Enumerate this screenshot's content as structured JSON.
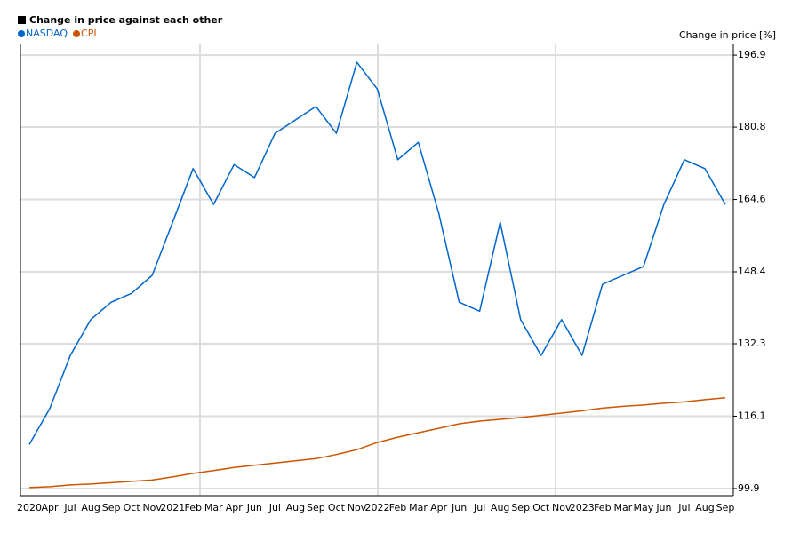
{
  "chart_data": {
    "type": "line",
    "title": "Change in price against each other",
    "y_axis_label": "Change in price [%]",
    "categories": [
      "2020",
      "Apr",
      "Jul",
      "Aug",
      "Sep",
      "Oct",
      "Nov",
      "2021",
      "Feb",
      "Mar",
      "Apr",
      "Jun",
      "Jul",
      "Aug",
      "Sep",
      "Oct",
      "Nov",
      "2022",
      "Feb",
      "Mar",
      "Apr",
      "Jun",
      "Jul",
      "Aug",
      "Sep",
      "Oct",
      "Nov",
      "2023",
      "Feb",
      "Mar",
      "May",
      "Jun",
      "Jul",
      "Aug",
      "Sep"
    ],
    "series": [
      {
        "name": "NASDAQ",
        "color": "#0066cc",
        "values": [
          109.8,
          117.8,
          129.7,
          137.7,
          141.6,
          143.6,
          147.6,
          159.5,
          171.5,
          163.5,
          172.4,
          169.5,
          179.4,
          182.4,
          185.4,
          179.4,
          195.3,
          189.3,
          173.5,
          177.4,
          161.5,
          141.6,
          139.6,
          159.5,
          137.7,
          129.7,
          137.7,
          129.7,
          145.6,
          147.6,
          149.6,
          163.5,
          173.5,
          171.5,
          163.5
        ]
      },
      {
        "name": "CPI",
        "color": "#cc5500",
        "values": [
          100.1,
          100.3,
          100.7,
          100.9,
          101.2,
          101.5,
          101.8,
          102.5,
          103.3,
          103.9,
          104.6,
          105.1,
          105.6,
          106.1,
          106.6,
          107.5,
          108.6,
          110.2,
          111.4,
          112.4,
          113.4,
          114.4,
          115.0,
          115.4,
          115.8,
          116.3,
          116.8,
          117.3,
          117.9,
          118.3,
          118.6,
          119.0,
          119.3,
          119.8,
          120.2
        ]
      }
    ],
    "ylim": [
      98.3,
      199.3
    ],
    "yticks": [
      99.9,
      116.1,
      132.3,
      148.4,
      164.6,
      180.8,
      196.9
    ],
    "grid": true
  }
}
